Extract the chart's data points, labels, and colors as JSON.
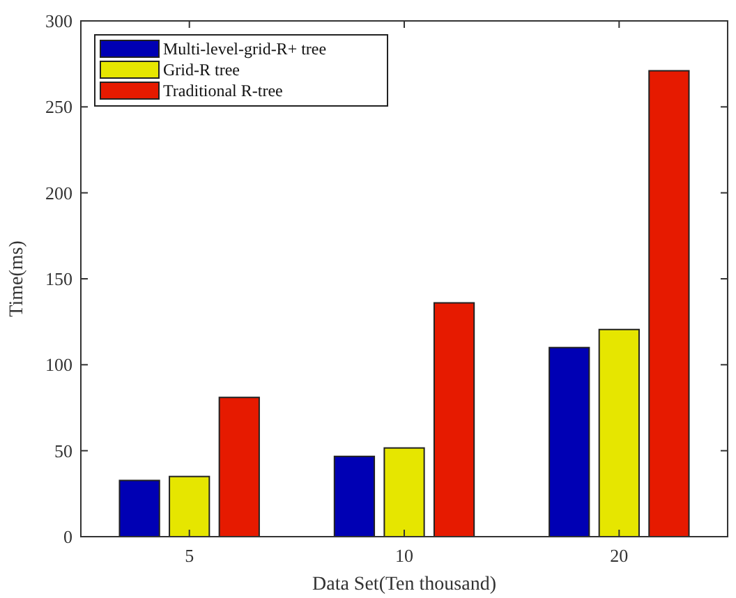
{
  "chart_data": {
    "type": "bar",
    "xlabel": "Data Set(Ten thousand)",
    "ylabel": "Time(ms)",
    "categories": [
      "5",
      "10",
      "20"
    ],
    "series": [
      {
        "name": "Multi-level-grid-R+ tree",
        "color": "#0000b4",
        "values": [
          32.7,
          46.7,
          110
        ]
      },
      {
        "name": "Grid-R tree",
        "color": "#e6e600",
        "values": [
          35,
          51.6,
          120.5
        ]
      },
      {
        "name": "Traditional R-tree",
        "color": "#e61a00",
        "values": [
          81,
          136,
          271
        ]
      }
    ],
    "ylim": [
      0,
      300
    ],
    "yticks": [
      0,
      50,
      100,
      150,
      200,
      250,
      300
    ],
    "legend": "top left",
    "grid": false
  }
}
